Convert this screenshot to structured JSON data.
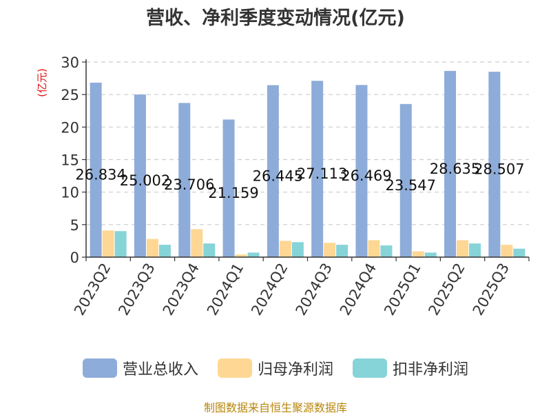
{
  "title": "营收、净利季度变动情况(亿元)",
  "source_note": "制图数据来自恒生聚源数据库",
  "chart_data": {
    "type": "bar",
    "title": "营收、净利季度变动情况(亿元)",
    "ylabel": "(亿元)",
    "ylim": [
      0,
      30
    ],
    "yticks": [
      "0",
      "5",
      "10",
      "15",
      "20",
      "25",
      "30"
    ],
    "grid": true,
    "legend_position": "bottom",
    "categories": [
      "2023Q2",
      "2023Q3",
      "2023Q4",
      "2024Q1",
      "2024Q2",
      "2024Q3",
      "2024Q4",
      "2025Q1",
      "2025Q2",
      "2025Q3"
    ],
    "series": [
      {
        "name": "营业总收入",
        "color": "#8eacd9",
        "values": [
          26.834,
          25.002,
          23.706,
          21.159,
          26.445,
          27.113,
          26.469,
          23.547,
          28.635,
          28.507
        ],
        "labels": [
          "26.834",
          "25.002",
          "23.706",
          "21.159",
          "26.445",
          "27.113",
          "26.469",
          "23.547",
          "28.635",
          "28.507"
        ]
      },
      {
        "name": "归母净利润",
        "color": "#fed794",
        "values": [
          4.1,
          2.8,
          4.3,
          0.4,
          2.5,
          2.2,
          2.6,
          0.9,
          2.6,
          1.9
        ]
      },
      {
        "name": "扣非净利润",
        "color": "#86d4d7",
        "values": [
          4.0,
          1.9,
          2.1,
          0.7,
          2.3,
          1.9,
          1.8,
          0.7,
          2.1,
          1.3
        ]
      }
    ]
  }
}
